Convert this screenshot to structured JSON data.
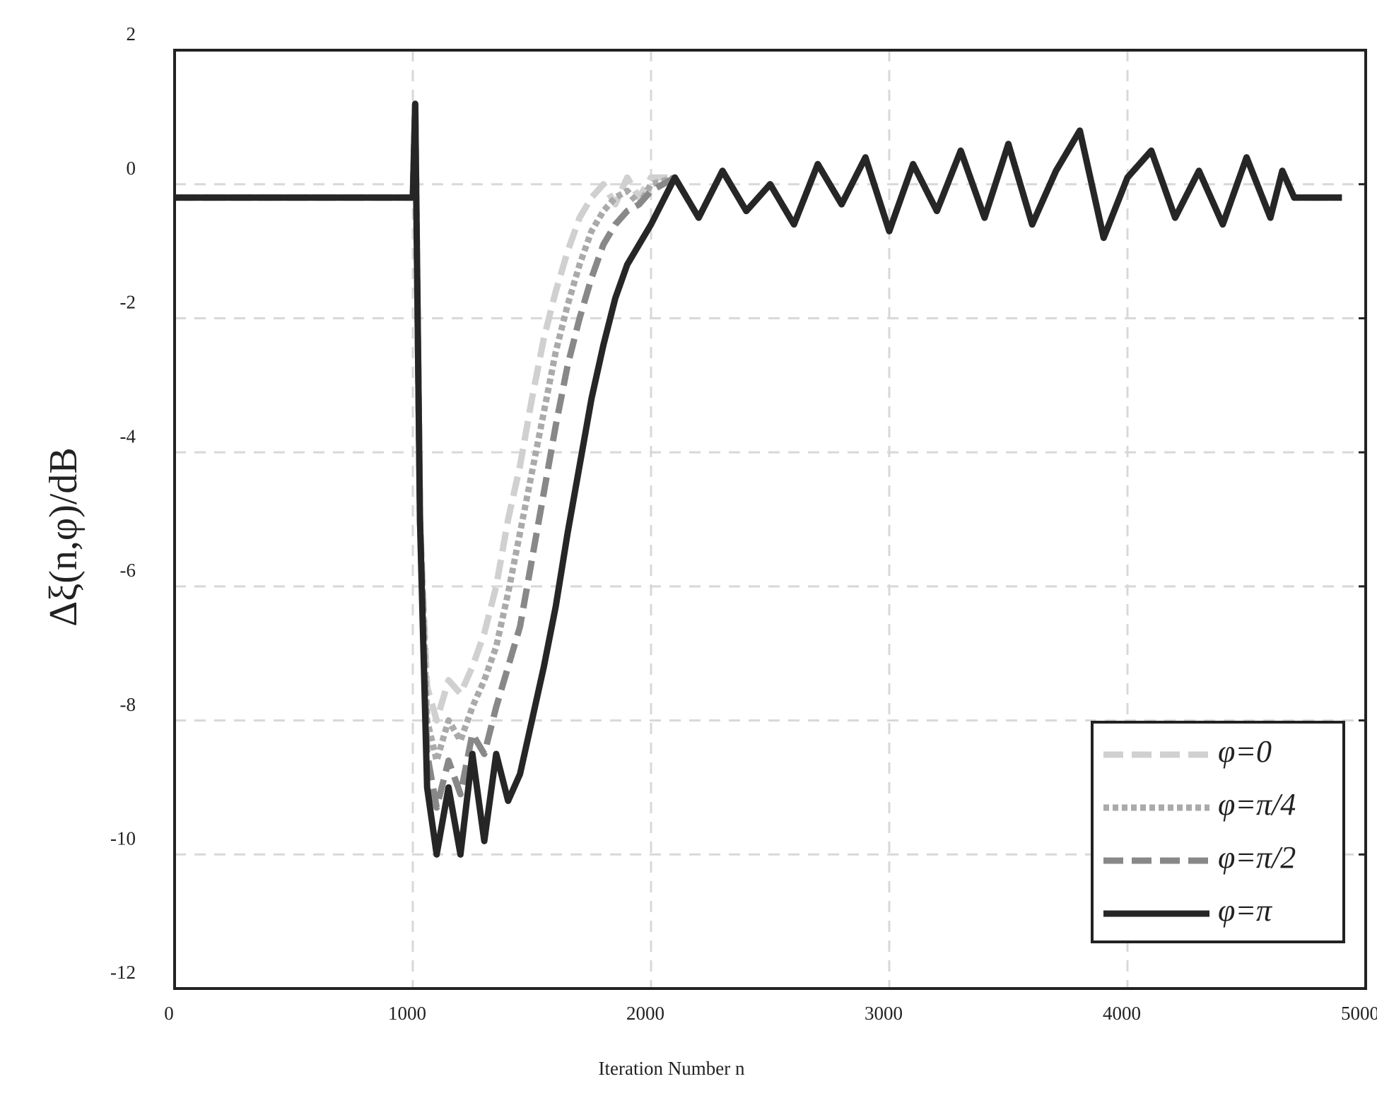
{
  "chart_data": {
    "type": "line",
    "x_label": "Iteration Number n",
    "y_label": "Δξ(n,φ)/dB",
    "x": [
      0,
      1000,
      1010,
      1030,
      1060,
      1100,
      1150,
      1200,
      1250,
      1300,
      1350,
      1400,
      1450,
      1500,
      1550,
      1600,
      1650,
      1700,
      1750,
      1800,
      1850,
      1900,
      1950,
      2000,
      2100,
      2200,
      2300,
      2400,
      2500,
      2600,
      2700,
      2800,
      2900,
      3000,
      3100,
      3200,
      3300,
      3400,
      3500,
      3600,
      3700,
      3800,
      3900,
      4000,
      4100,
      4200,
      4300,
      4400,
      4500,
      4600,
      4650,
      4700,
      4900
    ],
    "series": [
      {
        "name": "φ=0",
        "color": "#d0d0d0",
        "linestyle": "dashed",
        "values": [
          -0.2,
          -0.2,
          1.2,
          -5,
          -7.5,
          -8,
          -7.4,
          -7.6,
          -7.2,
          -6.7,
          -6,
          -5,
          -4.2,
          -3.2,
          -2.3,
          -1.6,
          -1.0,
          -0.5,
          -0.2,
          0.0,
          -0.3,
          0.1,
          -0.2,
          0.1,
          0.1,
          -0.5,
          0.2,
          -0.4,
          0.0,
          -0.6,
          0.3,
          -0.3,
          0.4,
          -0.7,
          0.3,
          -0.4,
          0.5,
          -0.5,
          0.6,
          -0.6,
          0.2,
          0.8,
          -0.8,
          0.1,
          0.5,
          -0.5,
          0.2,
          -0.6,
          0.4,
          -0.5,
          0.2,
          -0.2,
          -0.2
        ]
      },
      {
        "name": "φ=π/4",
        "color": "#aaaaaa",
        "linestyle": "dotted",
        "values": [
          -0.2,
          -0.2,
          1.2,
          -5,
          -8,
          -8.6,
          -8,
          -8.3,
          -7.8,
          -7.4,
          -6.9,
          -6.1,
          -5.2,
          -4.3,
          -3.4,
          -2.5,
          -1.8,
          -1.2,
          -0.7,
          -0.4,
          -0.2,
          -0.1,
          -0.3,
          0.0,
          0.1,
          -0.5,
          0.2,
          -0.4,
          0.0,
          -0.6,
          0.3,
          -0.3,
          0.4,
          -0.7,
          0.3,
          -0.4,
          0.5,
          -0.5,
          0.6,
          -0.6,
          0.2,
          0.8,
          -0.8,
          0.1,
          0.5,
          -0.5,
          0.2,
          -0.6,
          0.4,
          -0.5,
          0.2,
          -0.2,
          -0.2
        ]
      },
      {
        "name": "φ=π/2",
        "color": "#888888",
        "linestyle": "dashed",
        "values": [
          -0.2,
          -0.2,
          1.2,
          -5,
          -8.5,
          -9.3,
          -8.6,
          -9.1,
          -8.2,
          -8.5,
          -7.8,
          -7.2,
          -6.6,
          -5.6,
          -4.6,
          -3.6,
          -2.7,
          -2.0,
          -1.4,
          -0.9,
          -0.6,
          -0.4,
          -0.3,
          -0.1,
          0.1,
          -0.5,
          0.2,
          -0.4,
          0.0,
          -0.6,
          0.3,
          -0.3,
          0.4,
          -0.7,
          0.3,
          -0.4,
          0.5,
          -0.5,
          0.6,
          -0.6,
          0.2,
          0.8,
          -0.8,
          0.1,
          0.5,
          -0.5,
          0.2,
          -0.6,
          0.4,
          -0.5,
          0.2,
          -0.2,
          -0.2
        ]
      },
      {
        "name": "φ=π",
        "color": "#262626",
        "linestyle": "solid",
        "values": [
          -0.2,
          -0.2,
          1.2,
          -5,
          -9,
          -10,
          -9,
          -10,
          -8.5,
          -9.8,
          -8.5,
          -9.2,
          -8.8,
          -8,
          -7.2,
          -6.3,
          -5.2,
          -4.2,
          -3.2,
          -2.4,
          -1.7,
          -1.2,
          -0.9,
          -0.6,
          0.1,
          -0.5,
          0.2,
          -0.4,
          0.0,
          -0.6,
          0.3,
          -0.3,
          0.4,
          -0.7,
          0.3,
          -0.4,
          0.5,
          -0.5,
          0.6,
          -0.6,
          0.2,
          0.8,
          -0.8,
          0.1,
          0.5,
          -0.5,
          0.2,
          -0.6,
          0.4,
          -0.5,
          0.2,
          -0.2,
          -0.2
        ]
      }
    ],
    "xlim": [
      0,
      5000
    ],
    "xticks": [
      0,
      1000,
      2000,
      3000,
      4000,
      5000
    ],
    "ylim": [
      -12,
      2
    ],
    "yticks": [
      -12,
      -10,
      -8,
      -6,
      -4,
      -2,
      0,
      2
    ],
    "grid": true,
    "legend": "lower right"
  }
}
